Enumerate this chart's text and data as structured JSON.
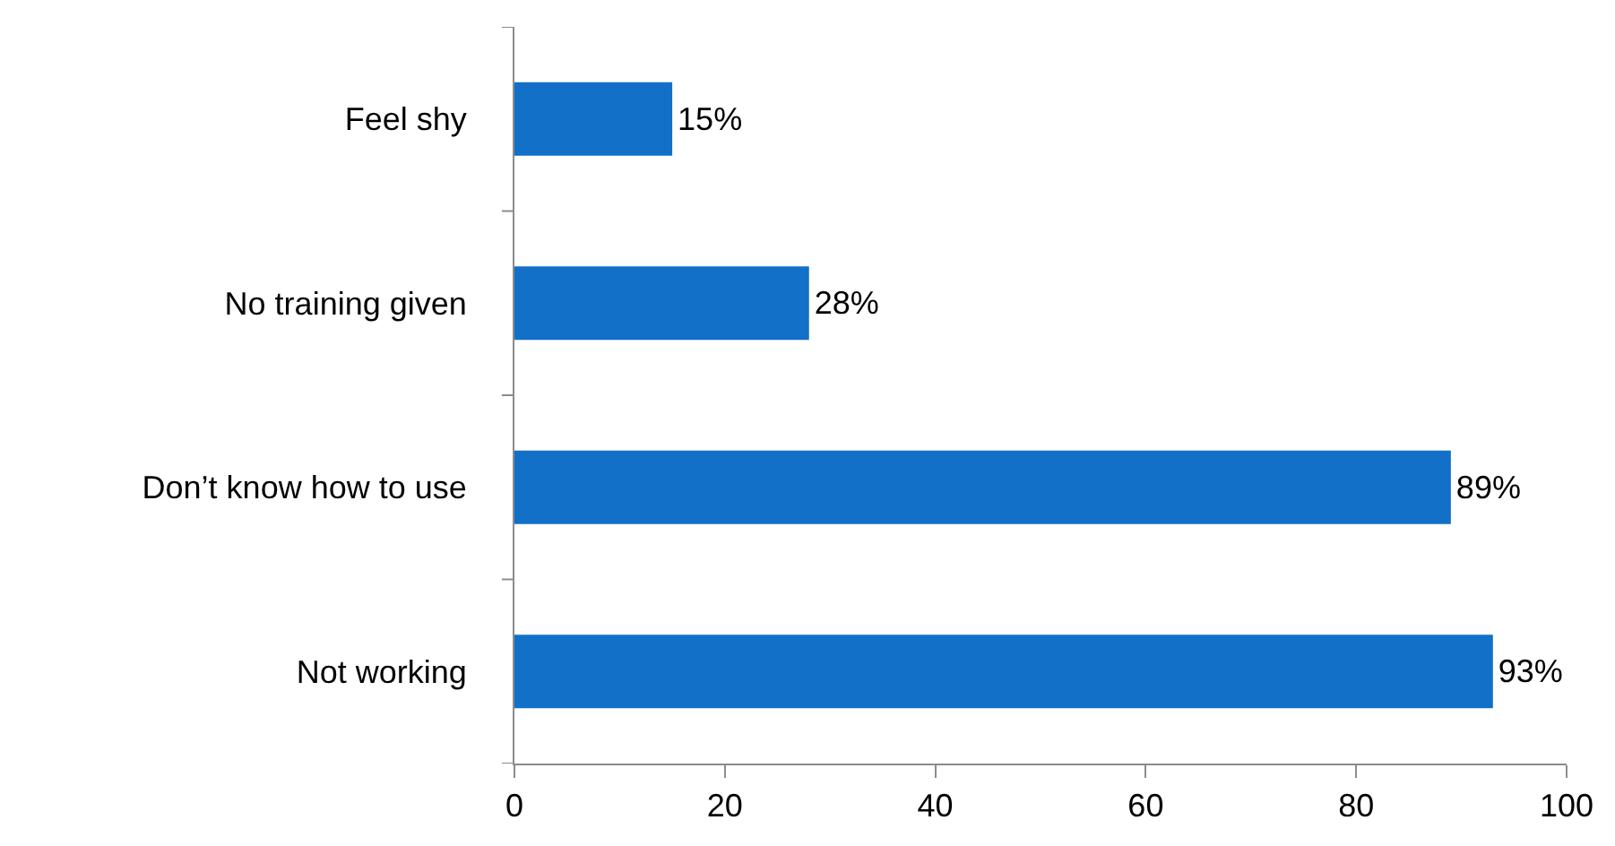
{
  "chart_data": {
    "type": "bar",
    "orientation": "horizontal",
    "categories": [
      "Feel shy",
      "No training given",
      "Don’t know how to use",
      "Not working"
    ],
    "values": [
      15,
      28,
      89,
      93
    ],
    "value_labels": [
      "15%",
      "28%",
      "89%",
      "93%"
    ],
    "color": "#1270c8",
    "xlim": [
      0,
      100
    ],
    "xticks": [
      0,
      20,
      40,
      60,
      80,
      100
    ]
  }
}
